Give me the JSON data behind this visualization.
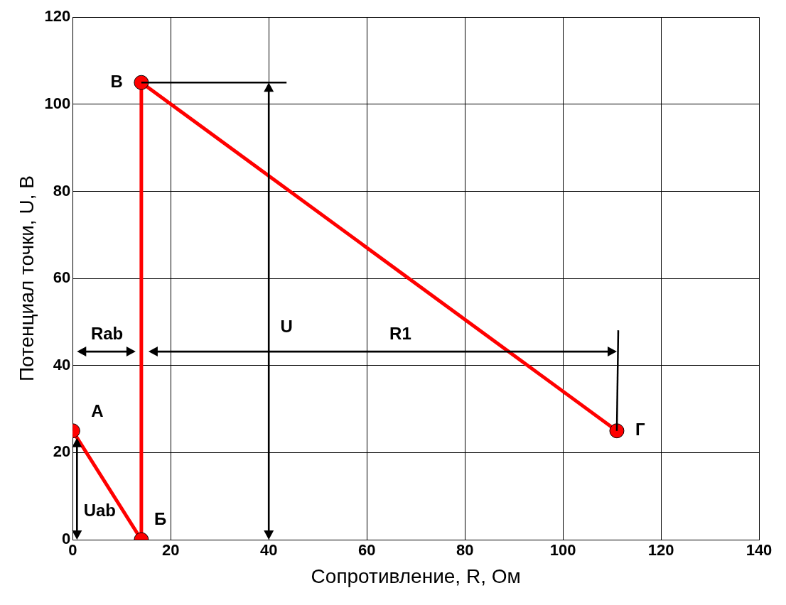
{
  "chart_data": {
    "type": "line",
    "xlabel": "Сопротивление, R, Ом",
    "ylabel": "Потенциал точки, U, В",
    "x": [
      0,
      14,
      14,
      111
    ],
    "series": [
      {
        "color": "#ff0000",
        "values": [
          25,
          0,
          105,
          25
        ]
      }
    ],
    "xlim": [
      0,
      140
    ],
    "xticks": [
      0,
      20,
      40,
      60,
      80,
      100,
      120,
      140
    ],
    "ylim": [
      0,
      120
    ],
    "yticks": [
      0,
      20,
      40,
      60,
      80,
      100,
      120
    ],
    "grid": true,
    "legend": false,
    "marker": "circle",
    "line_style": "solid",
    "annotations": [
      {
        "text": "А",
        "x": 0,
        "y": 25
      },
      {
        "text": "Б",
        "x": 14,
        "y": 0
      },
      {
        "text": "В",
        "x": 14,
        "y": 105
      },
      {
        "text": "Г",
        "x": 111,
        "y": 25
      },
      "Rab",
      "R1",
      "U",
      "Uab"
    ]
  }
}
